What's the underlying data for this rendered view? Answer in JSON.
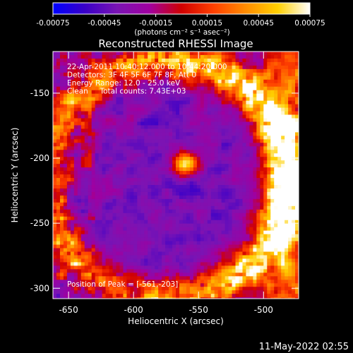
{
  "chart_data": {
    "type": "heatmap",
    "title": "Reconstructed RHESSI Image",
    "xlabel": "Heliocentric X (arcsec)",
    "ylabel": "Heliocentric Y (arcsec)",
    "xlim": [
      -662,
      -473
    ],
    "ylim": [
      -308,
      -118
    ],
    "x_ticks": [
      "-650",
      "-600",
      "-550",
      "-500"
    ],
    "y_ticks": [
      "-150",
      "-200",
      "-250",
      "-300"
    ],
    "colorbar": {
      "range": [
        -0.00075,
        0.00075
      ],
      "ticks": [
        "-0.00075",
        "-0.00045",
        "-0.00015",
        "0.00015",
        "0.00045",
        "0.00075"
      ],
      "unit_label": "(photons cm⁻² s⁻¹ asec⁻²)",
      "colors": [
        "#0000ff",
        "#3a00c8",
        "#7a14b4",
        "#a000a0",
        "#d00000",
        "#ff4000",
        "#ff8c00",
        "#ffd000",
        "#ffffff"
      ]
    },
    "annotations": [
      "22-Apr-2011 10:40:12.000 to 10:44:20.000",
      "Detectors: 3F 4F 5F 6F 7F 8F, Att 0",
      "Energy Range: 12.0 - 25.0 keV",
      "Clean     Total counts: 7.43E+03"
    ],
    "peak_label": "Position of Peak = [-561,-203]",
    "peak": {
      "x": -561,
      "y": -203
    },
    "ring_center": {
      "x": -575,
      "y": -215
    }
  },
  "footer": {
    "date": "11-May-2022 02:55"
  }
}
